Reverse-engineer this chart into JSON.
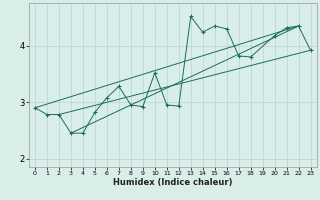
{
  "xlabel": "Humidex (Indice chaleur)",
  "xlim": [
    -0.5,
    23.5
  ],
  "ylim": [
    1.85,
    4.75
  ],
  "yticks": [
    2,
    3,
    4
  ],
  "xticks": [
    0,
    1,
    2,
    3,
    4,
    5,
    6,
    7,
    8,
    9,
    10,
    11,
    12,
    13,
    14,
    15,
    16,
    17,
    18,
    19,
    20,
    21,
    22,
    23
  ],
  "background_color": "#daeee9",
  "grid_color": "#b8d4cf",
  "line_color": "#1a6b60",
  "main_line": {
    "x": [
      0,
      1,
      2,
      3,
      4,
      5,
      6,
      7,
      8,
      9,
      10,
      11,
      12,
      13,
      14,
      15,
      16,
      17,
      18,
      20,
      21,
      22,
      23
    ],
    "y": [
      2.9,
      2.78,
      2.78,
      2.45,
      2.45,
      2.82,
      3.08,
      3.28,
      2.95,
      2.92,
      3.52,
      2.95,
      2.93,
      4.52,
      4.24,
      4.35,
      4.3,
      3.82,
      3.8,
      4.18,
      4.32,
      4.35,
      3.92
    ]
  },
  "trend_lines": [
    {
      "x": [
        0,
        22
      ],
      "y": [
        2.9,
        4.35
      ]
    },
    {
      "x": [
        2,
        23
      ],
      "y": [
        2.78,
        3.92
      ]
    },
    {
      "x": [
        3,
        22
      ],
      "y": [
        2.45,
        4.35
      ]
    }
  ]
}
